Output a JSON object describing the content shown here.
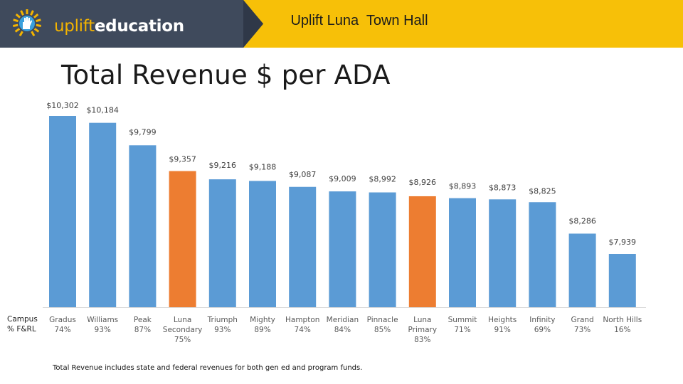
{
  "header": {
    "logo_word1": "uplift",
    "logo_word2": "education",
    "title": "Uplift Luna  Town Hall",
    "colors": {
      "dark": "#3f4a5c",
      "gold": "#f7c008"
    }
  },
  "slide": {
    "title": "Total Revenue $ per ADA",
    "row_label_line1": "Campus",
    "row_label_line2": "% F&RL",
    "footnote_emphasis": "Total Revenue",
    "footnote_rest": " includes state and federal revenues for both gen ed and program funds."
  },
  "chart_data": {
    "type": "bar",
    "title": "Total Revenue $ per ADA",
    "categories": [
      "Gradus",
      "Williams",
      "Peak",
      "Luna Secondary",
      "Triumph",
      "Mighty",
      "Hampton",
      "Meridian",
      "Pinnacle",
      "Luna Primary",
      "Summit",
      "Heights",
      "Infinity",
      "Grand",
      "North Hills"
    ],
    "category_label_lines": [
      [
        "Gradus"
      ],
      [
        "Williams"
      ],
      [
        "Peak"
      ],
      [
        "Luna",
        "Secondary"
      ],
      [
        "Triumph"
      ],
      [
        "Mighty"
      ],
      [
        "Hampton"
      ],
      [
        "Meridian"
      ],
      [
        "Pinnacle"
      ],
      [
        "Luna",
        "Primary"
      ],
      [
        "Summit"
      ],
      [
        "Heights"
      ],
      [
        "Infinity"
      ],
      [
        "Grand"
      ],
      [
        "North Hills"
      ]
    ],
    "frl": [
      "74%",
      "93%",
      "87%",
      "75%",
      "93%",
      "89%",
      "74%",
      "84%",
      "85%",
      "83%",
      "71%",
      "91%",
      "69%",
      "73%",
      "16%"
    ],
    "values": [
      10302,
      10184,
      9799,
      9357,
      9216,
      9188,
      9087,
      9009,
      8992,
      8926,
      8893,
      8873,
      8825,
      8286,
      7939
    ],
    "labels": [
      "$10,302",
      "$10,184",
      "$9,799",
      "$9,357",
      "$9,216",
      "$9,188",
      "$9,087",
      "$9,009",
      "$8,992",
      "$8,926",
      "$8,893",
      "$8,873",
      "$8,825",
      "$8,286",
      "$7,939"
    ],
    "highlight": [
      false,
      false,
      false,
      true,
      false,
      false,
      false,
      false,
      false,
      true,
      false,
      false,
      false,
      false,
      false
    ],
    "colors": {
      "default": "#5b9bd5",
      "highlight": "#ed7d31"
    },
    "xlabel": "",
    "ylabel": "",
    "ylim": [
      0,
      10302
    ],
    "grid": false,
    "legend": "none"
  }
}
